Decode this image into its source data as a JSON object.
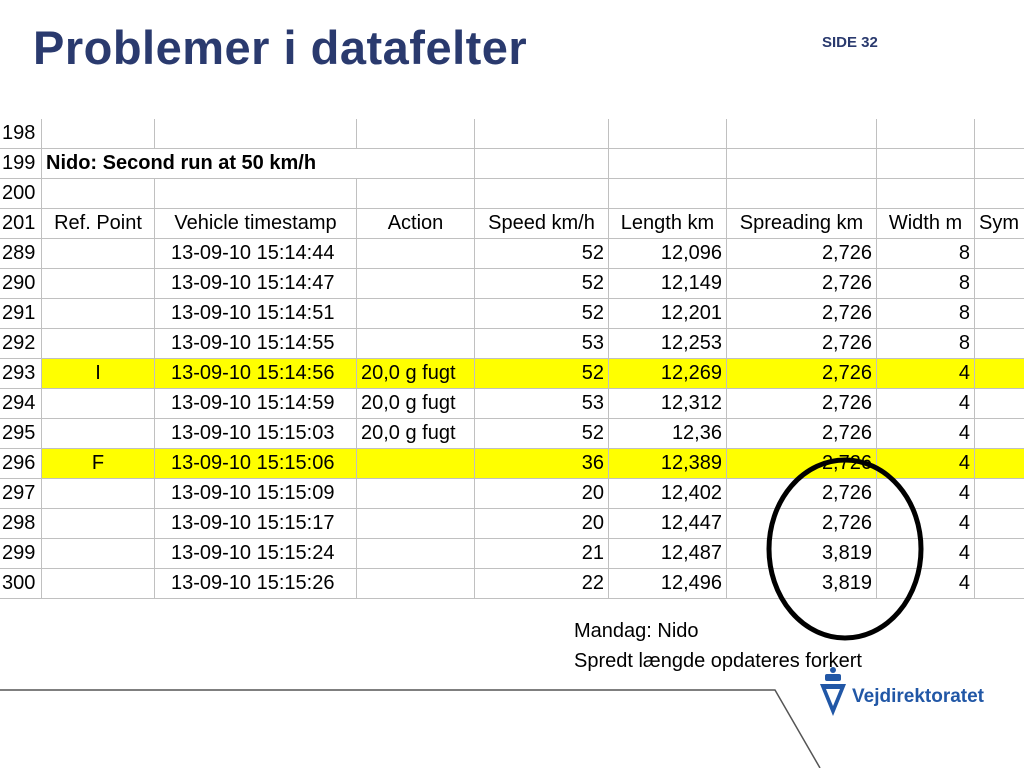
{
  "header": {
    "title": "Problemer i datafelter",
    "page": "SIDE 32"
  },
  "sheet": {
    "highlight_color": "#ffff00",
    "rows": [
      {
        "number": "198",
        "cells": [
          null,
          null,
          null,
          null,
          null,
          null,
          null,
          null
        ]
      },
      {
        "number": "199",
        "title": "Nido: Second run at 50 km/h"
      },
      {
        "number": "200",
        "cells": [
          null,
          null,
          null,
          null,
          null,
          null,
          null,
          null
        ]
      },
      {
        "number": "201",
        "cells": [
          "Ref. Point",
          "Vehicle timestamp",
          "Action",
          "Speed km/h",
          "Length km",
          "Spreading km",
          "Width m",
          "Sym"
        ]
      },
      {
        "number": "289",
        "cells": [
          null,
          "13-09-10 15:14:44",
          null,
          "52",
          "12,096",
          "2,726",
          "8",
          null
        ]
      },
      {
        "number": "290",
        "cells": [
          null,
          "13-09-10 15:14:47",
          null,
          "52",
          "12,149",
          "2,726",
          "8",
          null
        ]
      },
      {
        "number": "291",
        "cells": [
          null,
          "13-09-10 15:14:51",
          null,
          "52",
          "12,201",
          "2,726",
          "8",
          null
        ]
      },
      {
        "number": "292",
        "cells": [
          null,
          "13-09-10 15:14:55",
          null,
          "53",
          "12,253",
          "2,726",
          "8",
          null
        ]
      },
      {
        "number": "293",
        "highlight": true,
        "cells": [
          "I",
          "13-09-10 15:14:56",
          "20,0 g fugt",
          "52",
          "12,269",
          "2,726",
          "4",
          null
        ]
      },
      {
        "number": "294",
        "cells": [
          null,
          "13-09-10 15:14:59",
          "20,0 g fugt",
          "53",
          "12,312",
          "2,726",
          "4",
          null
        ]
      },
      {
        "number": "295",
        "cells": [
          null,
          "13-09-10 15:15:03",
          "20,0 g fugt",
          "52",
          "12,36",
          "2,726",
          "4",
          null
        ]
      },
      {
        "number": "296",
        "highlight": true,
        "cells": [
          "F",
          "13-09-10 15:15:06",
          null,
          "36",
          "12,389",
          "2,726",
          "4",
          null
        ]
      },
      {
        "number": "297",
        "cells": [
          null,
          "13-09-10 15:15:09",
          null,
          "20",
          "12,402",
          "2,726",
          "4",
          null
        ]
      },
      {
        "number": "298",
        "cells": [
          null,
          "13-09-10 15:15:17",
          null,
          "20",
          "12,447",
          "2,726",
          "4",
          null
        ]
      },
      {
        "number": "299",
        "cells": [
          null,
          "13-09-10 15:15:24",
          null,
          "21",
          "12,487",
          "3,819",
          "4",
          null
        ]
      },
      {
        "number": "300",
        "cells": [
          null,
          "13-09-10 15:15:26",
          null,
          "22",
          "12,496",
          "3,819",
          "4",
          null
        ]
      }
    ]
  },
  "note": {
    "line1": "Mandag: Nido",
    "line2": "Spredt længde opdateres forkert"
  },
  "logo": {
    "text": "Vejdirektoratet"
  }
}
